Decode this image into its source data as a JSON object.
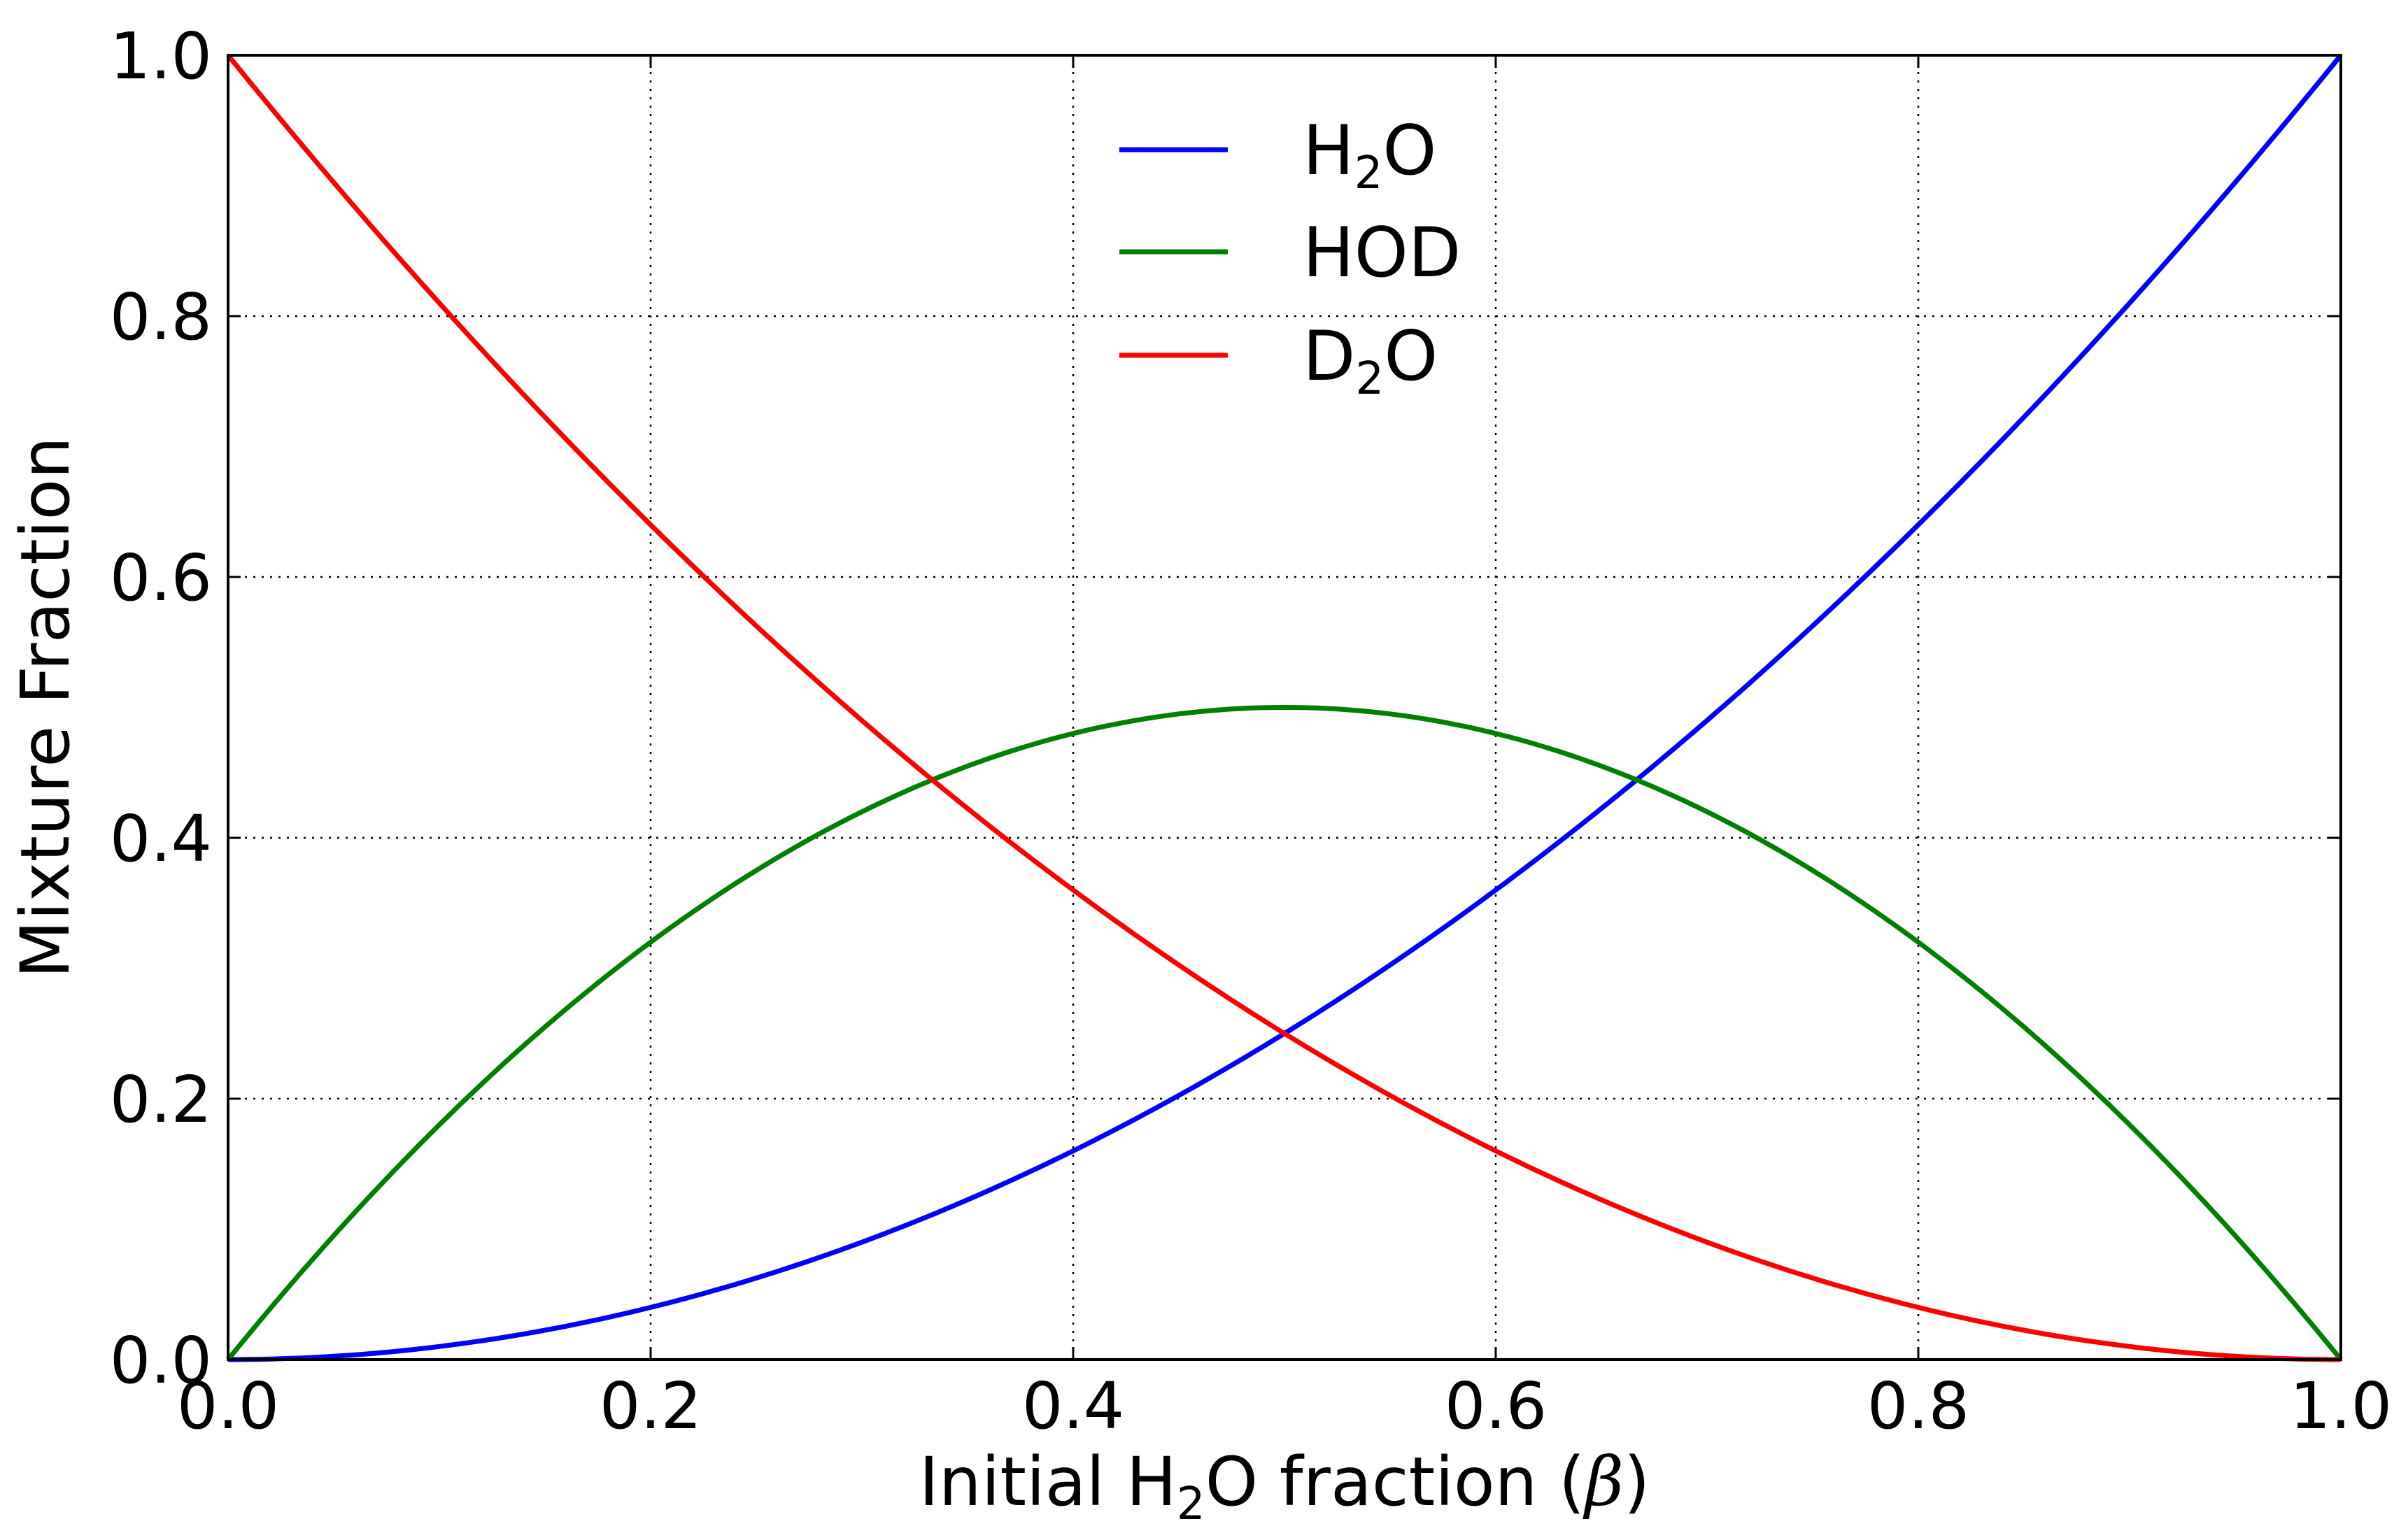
{
  "chart_data": {
    "type": "line",
    "xlabel": {
      "before": "Initial H",
      "sub": "2",
      "after": "O fraction (",
      "symbol": "β",
      "close": ")"
    },
    "ylabel": "Mixture Fraction",
    "xlim": [
      0.0,
      1.0
    ],
    "ylim": [
      0.0,
      1.0
    ],
    "xticks": [
      0.0,
      0.2,
      0.4,
      0.6,
      0.8,
      1.0
    ],
    "yticks": [
      0.0,
      0.2,
      0.4,
      0.6,
      0.8,
      1.0
    ],
    "xtick_labels": [
      "0.0",
      "0.2",
      "0.4",
      "0.6",
      "0.8",
      "1.0"
    ],
    "ytick_labels": [
      "0.0",
      "0.2",
      "0.4",
      "0.6",
      "0.8",
      "1.0"
    ],
    "grid": true,
    "legend_position": "top-center",
    "x": [
      0.0,
      0.05,
      0.1,
      0.15,
      0.2,
      0.25,
      0.3,
      0.35,
      0.4,
      0.45,
      0.5,
      0.55,
      0.6,
      0.65,
      0.7,
      0.75,
      0.8,
      0.85,
      0.9,
      0.95,
      1.0
    ],
    "series": [
      {
        "name": "H2O",
        "label": {
          "main": "H",
          "sub": "2",
          "tail": "O"
        },
        "color": "#0000ff",
        "values": [
          0.0,
          0.0025,
          0.01,
          0.0225,
          0.04,
          0.0625,
          0.09,
          0.1225,
          0.16,
          0.2025,
          0.25,
          0.3025,
          0.36,
          0.4225,
          0.49,
          0.5625,
          0.64,
          0.7225,
          0.81,
          0.9025,
          1.0
        ]
      },
      {
        "name": "HOD",
        "label": {
          "main": "HOD",
          "sub": "",
          "tail": ""
        },
        "color": "#008000",
        "values": [
          0.0,
          0.095,
          0.18,
          0.255,
          0.32,
          0.375,
          0.42,
          0.455,
          0.48,
          0.495,
          0.5,
          0.495,
          0.48,
          0.455,
          0.42,
          0.375,
          0.32,
          0.255,
          0.18,
          0.095,
          0.0
        ]
      },
      {
        "name": "D2O",
        "label": {
          "main": "D",
          "sub": "2",
          "tail": "O"
        },
        "color": "#ff0000",
        "values": [
          1.0,
          0.9025,
          0.81,
          0.7225,
          0.64,
          0.5625,
          0.49,
          0.4225,
          0.36,
          0.3025,
          0.25,
          0.2025,
          0.16,
          0.1225,
          0.09,
          0.0625,
          0.04,
          0.0225,
          0.01,
          0.0025,
          0.0
        ]
      }
    ]
  }
}
